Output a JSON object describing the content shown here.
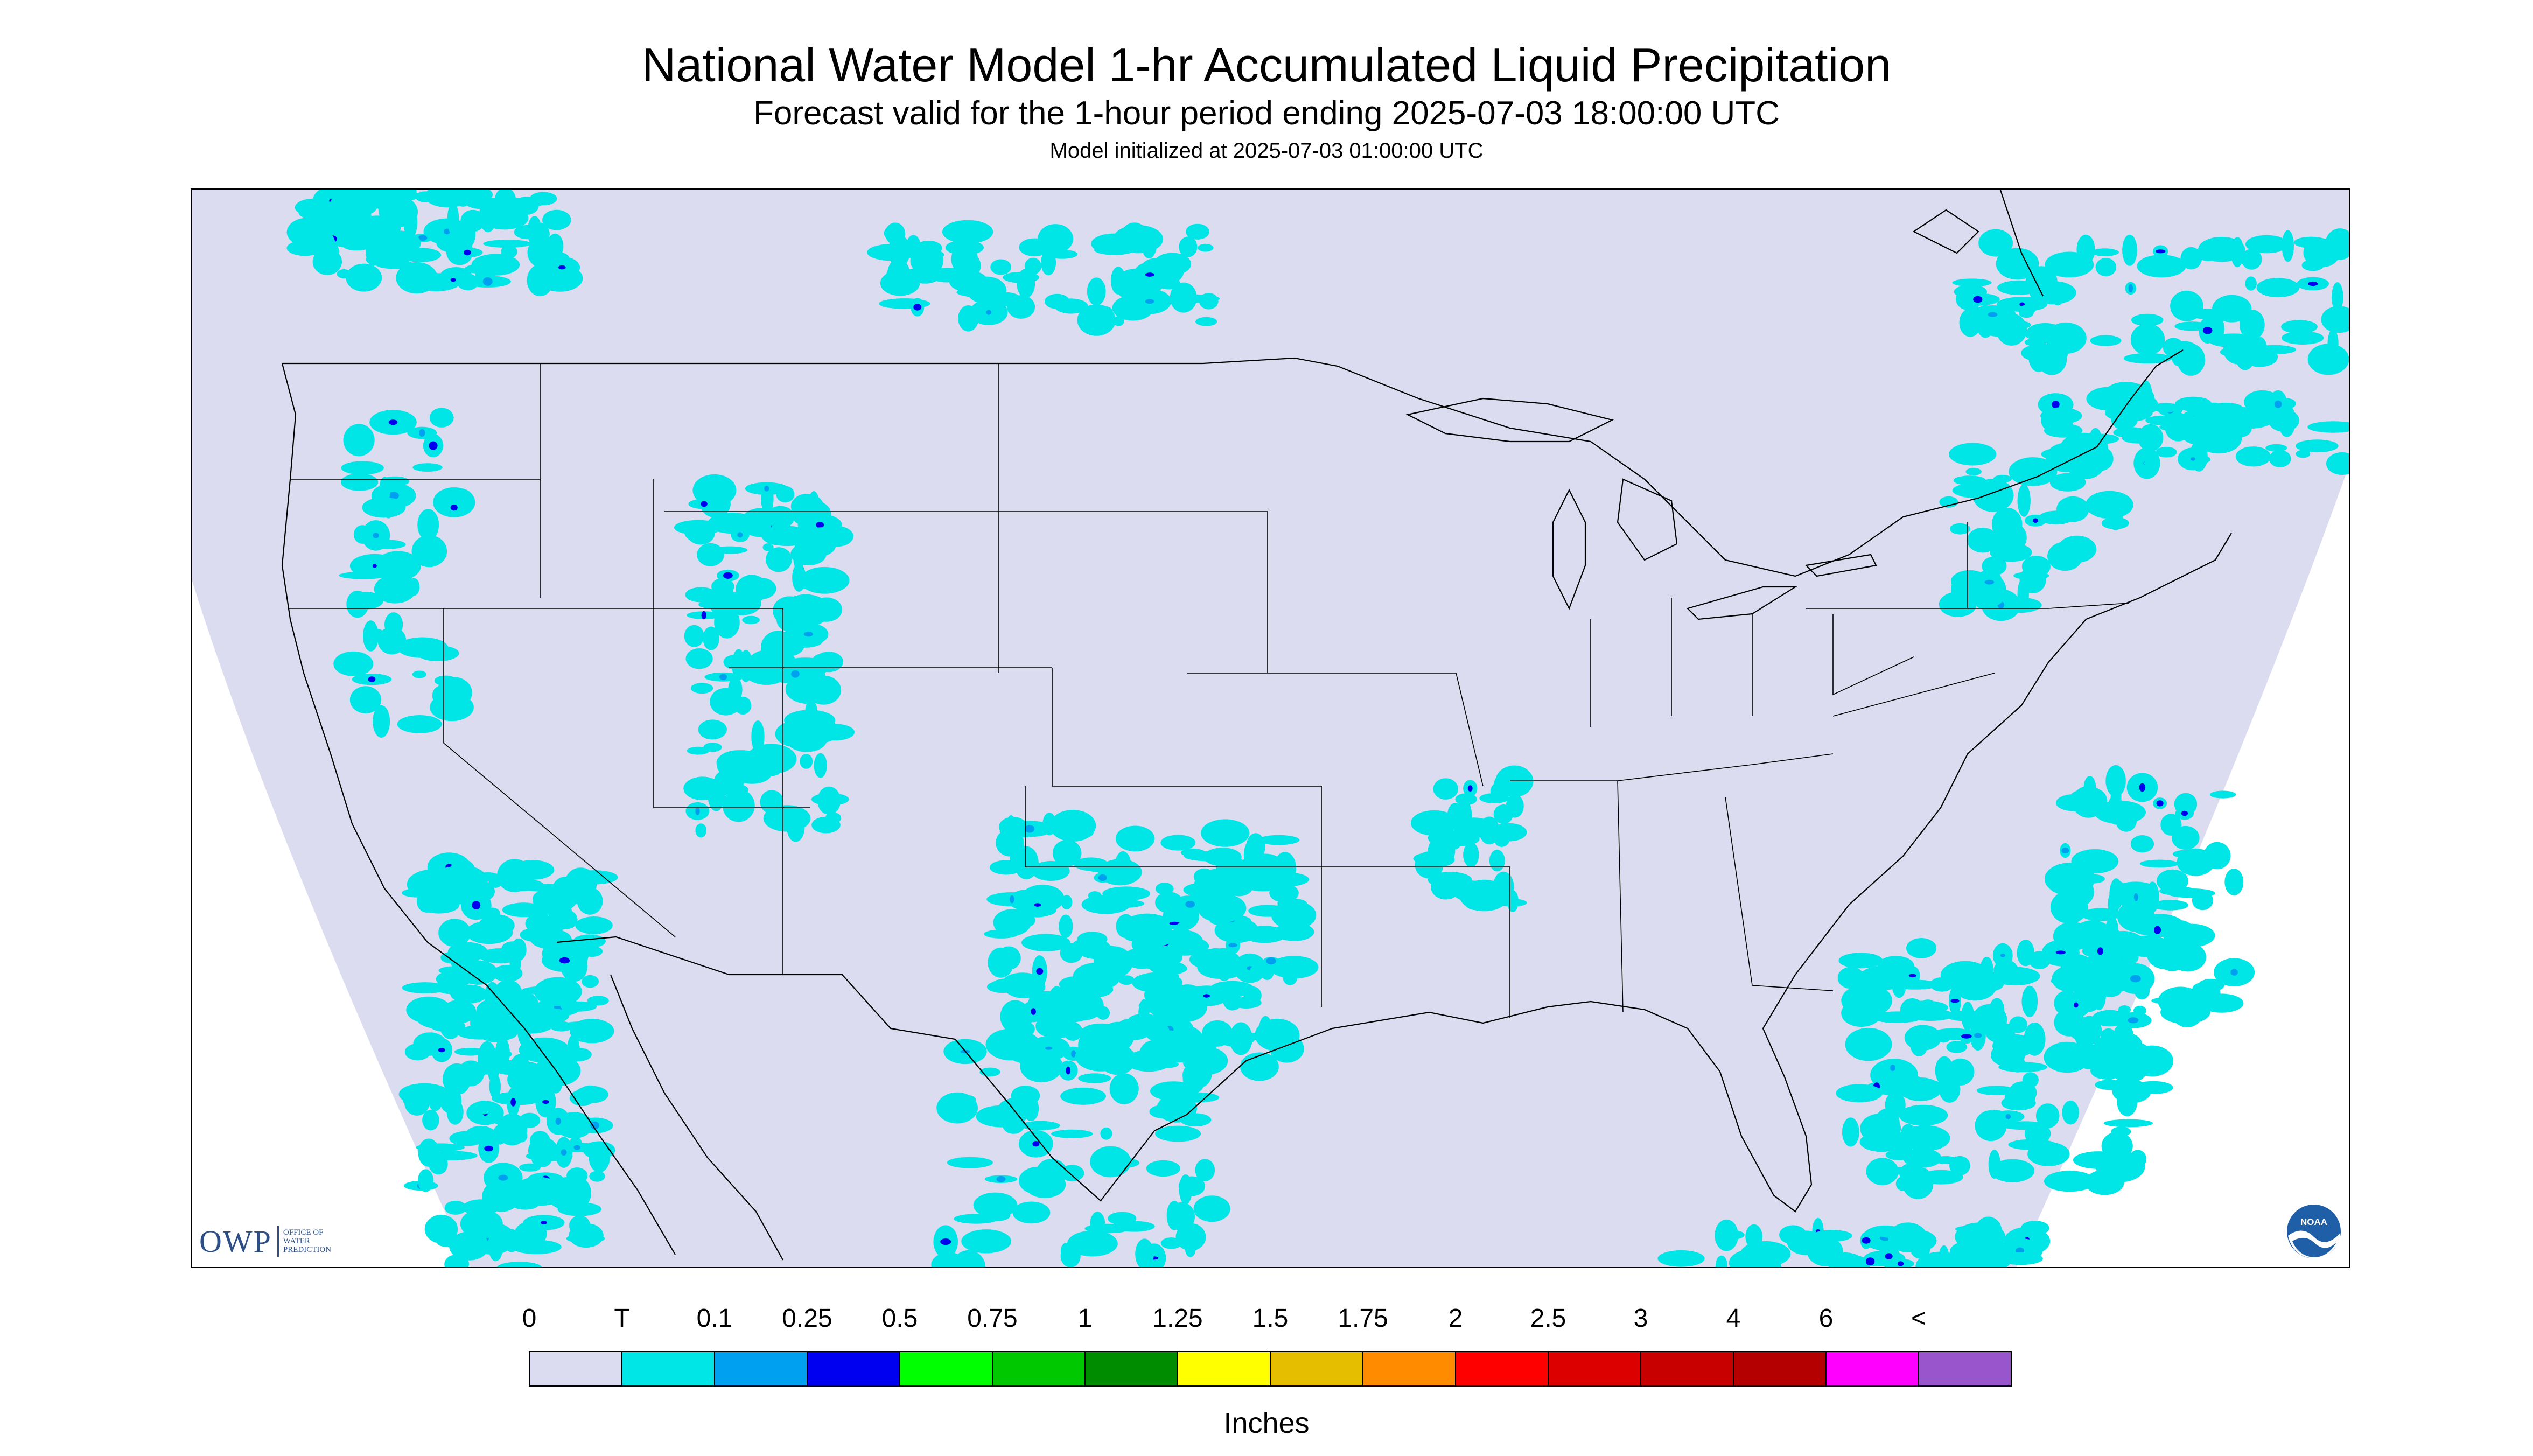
{
  "title": "National Water Model 1-hr Accumulated Liquid Precipitation",
  "subtitle": "Forecast valid for the 1-hour period ending 2025-07-03 18:00:00 UTC",
  "init_line": "Model initialized at 2025-07-03 01:00:00 UTC",
  "logos": {
    "owp_mark": "OWP",
    "owp_text": "OFFICE OF WATER PREDICTION",
    "noaa": "NOAA"
  },
  "legend": {
    "labels": [
      "0",
      "T",
      "0.1",
      "0.25",
      "0.5",
      "0.75",
      "1",
      "1.25",
      "1.5",
      "1.75",
      "2",
      "2.5",
      "3",
      "4",
      "6",
      "<"
    ],
    "colors": [
      "#dcdcf0",
      "#00e6e6",
      "#00a0f0",
      "#0000f0",
      "#00ff00",
      "#00c800",
      "#008c00",
      "#ffff00",
      "#e6be00",
      "#ff8c00",
      "#ff0000",
      "#dc0000",
      "#c80000",
      "#b40000",
      "#ff00ff",
      "#9955cc"
    ],
    "units": "Inches"
  },
  "map": {
    "background_color": "#dcdcf0",
    "outside_color": "#ffffff",
    "trace_color": "#00e6e6",
    "light_blue_color": "#00a0f0",
    "heavy_color": "#0000f0",
    "boundary_color": "#000000"
  }
}
